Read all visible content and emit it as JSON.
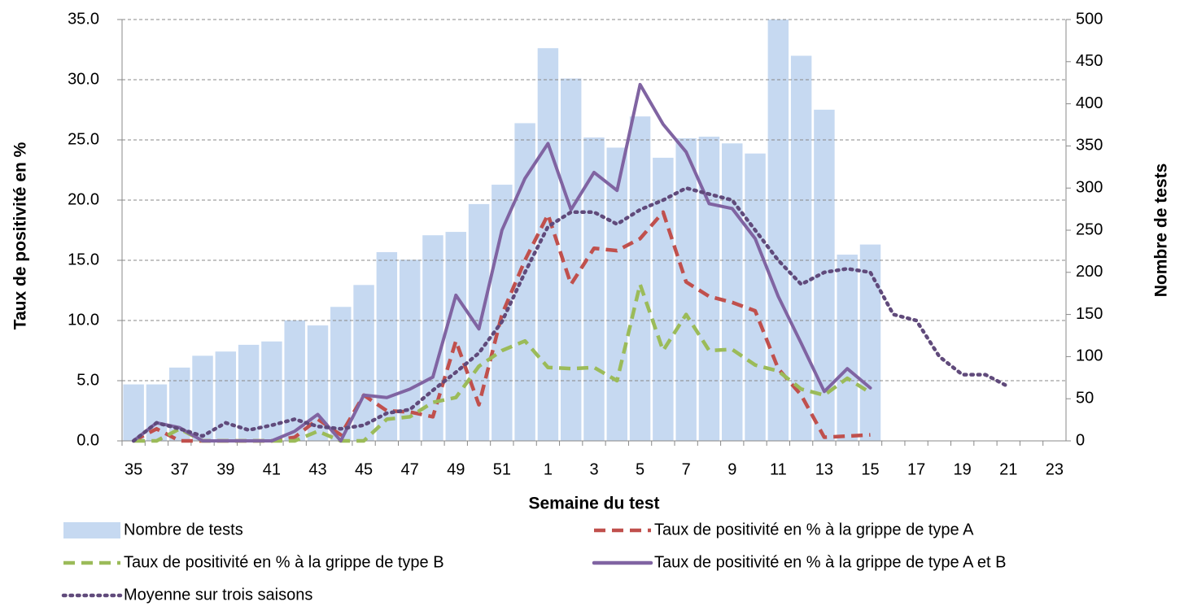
{
  "chart_data": {
    "type": "bar-line",
    "xlabel": "Semaine du test",
    "ylabel": "Taux de positivité en %",
    "y2label": "Nombre de tests",
    "categories": [
      "35",
      null,
      "37",
      null,
      "39",
      null,
      "41",
      null,
      "43",
      null,
      "45",
      null,
      "47",
      null,
      "49",
      null,
      "51",
      null,
      "1",
      null,
      "3",
      null,
      "5",
      null,
      "7",
      null,
      "9",
      null,
      "11",
      null,
      "13",
      null,
      "15",
      null,
      "17",
      null,
      "19",
      null,
      "21",
      null,
      "23"
    ],
    "ylim": [
      0,
      35
    ],
    "yticks": [
      {
        "value": 0,
        "label": "0.0"
      },
      {
        "value": 5,
        "label": "5.0"
      },
      {
        "value": 10,
        "label": "10.0"
      },
      {
        "value": 15,
        "label": "15.0"
      },
      {
        "value": 20,
        "label": "20.0"
      },
      {
        "value": 25,
        "label": "25.0"
      },
      {
        "value": 30,
        "label": "30.0"
      },
      {
        "value": 35,
        "label": "35.0"
      }
    ],
    "y2lim": [
      0,
      500
    ],
    "y2ticks": [
      0,
      50,
      100,
      150,
      200,
      250,
      300,
      350,
      400,
      450,
      500
    ],
    "grid": true,
    "legend": "bottom",
    "series": [
      {
        "name": "Nombre de tests",
        "kind": "bar",
        "axis": "y2",
        "color": "#c6d9f1",
        "values": [
          67,
          67,
          87,
          101,
          106,
          114,
          118,
          143,
          137,
          159,
          185,
          224,
          215,
          244,
          248,
          281,
          304,
          377,
          466,
          430,
          360,
          348,
          385,
          336,
          359,
          361,
          353,
          341,
          500,
          457,
          393,
          221,
          233,
          null,
          null,
          null,
          null,
          null,
          null,
          null,
          null
        ]
      },
      {
        "name": "Taux de positivité en % à la grippe de type A",
        "kind": "line",
        "style": "dashed",
        "color": "#c0504d",
        "values": [
          0,
          1.0,
          0,
          0,
          0,
          0,
          0,
          0.3,
          1.8,
          0.5,
          3.8,
          2.5,
          2.4,
          2.0,
          8.3,
          3.0,
          10.5,
          15.0,
          18.8,
          13.0,
          16.0,
          15.8,
          16.8,
          19.0,
          13.2,
          12.0,
          11.5,
          10.8,
          6.0,
          3.8,
          0.3,
          0.4,
          0.5,
          null,
          null,
          null,
          null,
          null,
          null,
          null,
          null
        ]
      },
      {
        "name": "Taux de positivité en % à la grippe de type B",
        "kind": "line",
        "style": "dashed",
        "color": "#9bbb59",
        "values": [
          0,
          0,
          1.0,
          0,
          0,
          0,
          0,
          0,
          0.8,
          0,
          0,
          1.8,
          2.0,
          3.2,
          3.6,
          6.2,
          7.5,
          8.3,
          6.1,
          6.0,
          6.1,
          5.0,
          13.0,
          7.5,
          10.5,
          7.5,
          7.6,
          6.3,
          5.8,
          4.3,
          3.8,
          5.2,
          4.0,
          null,
          null,
          null,
          null,
          null,
          null,
          null,
          null
        ]
      },
      {
        "name": "Taux de positivité en % à la grippe de type A et B",
        "kind": "line",
        "style": "solid",
        "color": "#8064a2",
        "values": [
          0,
          1.5,
          1.1,
          0,
          0,
          0,
          0,
          0.8,
          2.2,
          0,
          3.8,
          3.6,
          4.3,
          5.3,
          12.1,
          9.3,
          17.5,
          21.8,
          24.7,
          19.2,
          22.3,
          20.8,
          29.6,
          26.3,
          24.0,
          19.7,
          19.3,
          16.8,
          12.0,
          8.1,
          4.1,
          6.0,
          4.4,
          null,
          null,
          null,
          null,
          null,
          null,
          null,
          null
        ]
      },
      {
        "name": "Moyenne sur trois saisons",
        "kind": "line",
        "style": "dotted",
        "color": "#604a7b",
        "values": [
          0,
          1.5,
          1.0,
          0.4,
          1.5,
          0.9,
          1.3,
          1.8,
          1.2,
          1.0,
          1.3,
          2.3,
          2.6,
          4.2,
          5.7,
          7.3,
          9.9,
          14.0,
          17.8,
          19.0,
          19.0,
          18.0,
          19.2,
          20.0,
          21.0,
          20.5,
          20.0,
          17.5,
          15.0,
          13.0,
          14.0,
          14.3,
          14.0,
          10.5,
          10.0,
          7.0,
          5.5,
          5.5,
          4.5,
          null,
          null
        ]
      }
    ]
  }
}
